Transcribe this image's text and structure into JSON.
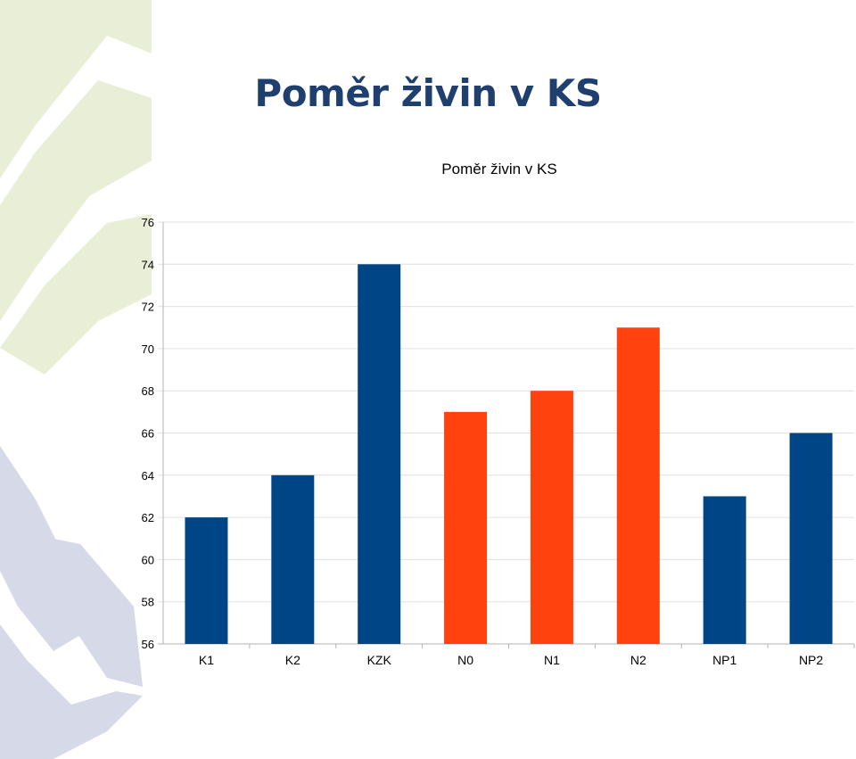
{
  "slide": {
    "title": "Poměr živin v KS"
  },
  "colors": {
    "background": "#ffffff",
    "title": "#1f3f6e",
    "bar_blue": "#004586",
    "bar_orange": "#ff420e",
    "grid": "#b3b3b3",
    "decor_green": "#e8efd6",
    "decor_blue": "#d5d9e8"
  },
  "chart_data": {
    "type": "bar",
    "title": "Poměr živin v KS",
    "categories": [
      "K1",
      "K2",
      "KZK",
      "N0",
      "N1",
      "N2",
      "NP1",
      "NP2"
    ],
    "values": [
      62,
      64,
      74,
      67,
      68,
      71,
      63,
      66
    ],
    "bar_colors": [
      "#004586",
      "#004586",
      "#004586",
      "#ff420e",
      "#ff420e",
      "#ff420e",
      "#004586",
      "#004586"
    ],
    "ylim": [
      56,
      76
    ],
    "yticks": [
      56,
      58,
      60,
      62,
      64,
      66,
      68,
      70,
      72,
      74,
      76
    ],
    "grid": true,
    "xlabel": "",
    "ylabel": ""
  }
}
